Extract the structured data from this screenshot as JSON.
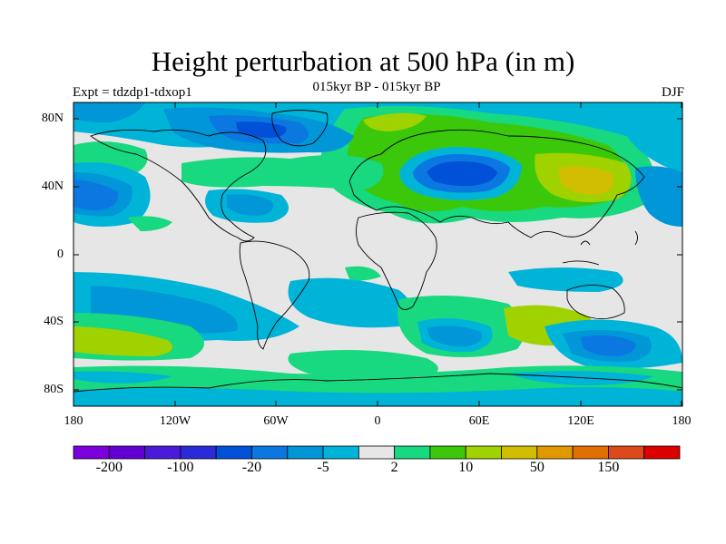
{
  "title": "Height perturbation at 500 hPa (in m)",
  "subtitle": "015kyr BP - 015kyr BP",
  "left_label": "Expt = tdzdp1-tdxop1",
  "right_label": "DJF",
  "lat_labels": [
    "80N",
    "40N",
    "0",
    "40S",
    "80S"
  ],
  "lon_labels": [
    "180",
    "120W",
    "60W",
    "0",
    "60E",
    "120E",
    "180"
  ],
  "colorbar": {
    "colors": [
      "#7a00dc",
      "#6200d4",
      "#4a1ad8",
      "#2a2ad8",
      "#0050d8",
      "#0a78e0",
      "#0096d8",
      "#00b4d8",
      "#e6e6e6",
      "#18d880",
      "#3cc80a",
      "#a0d200",
      "#d2be00",
      "#e09a00",
      "#e06e00",
      "#dc4a1a",
      "#dc0000"
    ],
    "labels": [
      "-200",
      "-100",
      "-20",
      "-5",
      "2",
      "10",
      "50",
      "150"
    ]
  },
  "palette": {
    "neutral": "#e6e6e6",
    "land_outline": "#000000"
  }
}
